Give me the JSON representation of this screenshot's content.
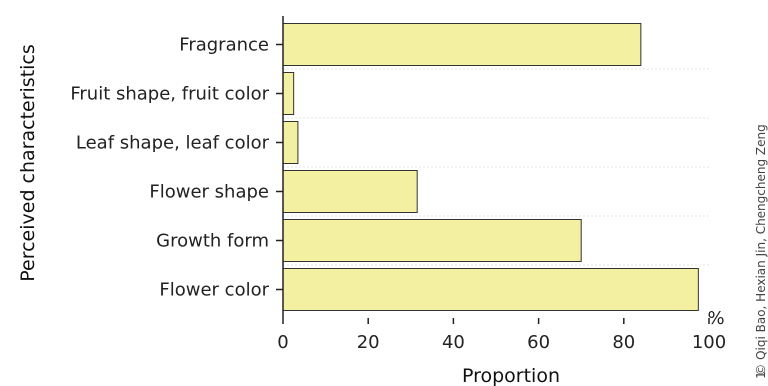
{
  "chart_data": {
    "type": "bar",
    "orientation": "horizontal",
    "categories": [
      "Fragrance",
      "Fruit shape, fruit color",
      "Leaf shape, leaf color",
      "Flower shape",
      "Growth form",
      "Flower color"
    ],
    "values": [
      84,
      2.5,
      3.5,
      31.5,
      70,
      97.5
    ],
    "xlabel": "Proportion",
    "ylabel": "Perceived characteristics",
    "x_unit": "%",
    "xlim": [
      0,
      100
    ],
    "x_ticks": [
      "0",
      "20",
      "40",
      "60",
      "80",
      "100"
    ],
    "grid": true,
    "bar_color": "#f3f0a2",
    "bar_edge_color": "#333333"
  },
  "credit": {
    "number": "1",
    "text": "© Qiqi Bao, Hexian Jin, Chengcheng Zeng"
  }
}
